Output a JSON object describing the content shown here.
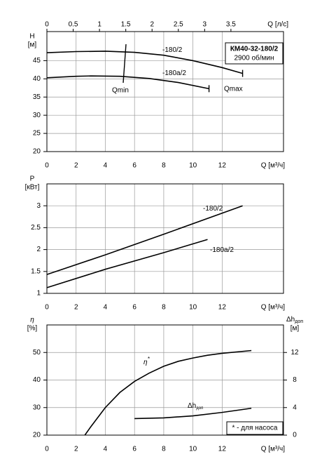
{
  "chart_data": [
    {
      "type": "line",
      "xlabel": "Q [м³/ч]",
      "x2label": "Q [л/с]",
      "ylabel": "H",
      "yunit": "[м]",
      "xlim": [
        0,
        16.2
      ],
      "xticks": [
        0,
        2,
        4,
        6,
        8,
        10,
        12
      ],
      "x2lim": [
        0,
        4.5
      ],
      "x2ticks": [
        0,
        0.5,
        1,
        1.5,
        2,
        2.5,
        3,
        3.5
      ],
      "ylim": [
        20,
        53
      ],
      "yticks": [
        20,
        25,
        30,
        35,
        40,
        45
      ],
      "grid": true,
      "box_title": "КМ40-32-180/2",
      "box_text": "2900 об/мин",
      "annotations": [
        "Qmin",
        "Qmax"
      ],
      "end_marks": true,
      "series": [
        {
          "name": "-180/2",
          "color": "#000000",
          "x": [
            0,
            2,
            4,
            6,
            8,
            10,
            12,
            13.4
          ],
          "values": [
            47.2,
            47.5,
            47.6,
            47.3,
            46.5,
            45.0,
            43.1,
            41.5
          ]
        },
        {
          "name": "-180a/2",
          "color": "#000000",
          "x": [
            0,
            2,
            3,
            5,
            7,
            9,
            11.1
          ],
          "values": [
            40.3,
            40.7,
            40.8,
            40.7,
            40.1,
            39.0,
            37.3
          ]
        }
      ]
    },
    {
      "type": "line",
      "xlabel": "Q [м³/ч]",
      "ylabel": "P",
      "yunit": "[кВт]",
      "xlim": [
        0,
        16.2
      ],
      "xticks": [
        0,
        2,
        4,
        6,
        8,
        10,
        12
      ],
      "ylim": [
        1,
        3.5
      ],
      "yticks": [
        1,
        1.5,
        2,
        2.5,
        3
      ],
      "grid": true,
      "series": [
        {
          "name": "-180/2",
          "color": "#000000",
          "x": [
            0,
            4,
            8,
            13.4
          ],
          "values": [
            1.43,
            1.88,
            2.35,
            3.0
          ]
        },
        {
          "name": "-180a/2",
          "color": "#000000",
          "x": [
            0,
            4,
            8,
            11
          ],
          "values": [
            1.13,
            1.55,
            1.93,
            2.23
          ]
        }
      ]
    },
    {
      "type": "line",
      "xlabel": "Q [м³/ч]",
      "ylabel": "η",
      "yunit": "[%]",
      "y2label": "Δh",
      "y2sub": "доп",
      "y2unit": "[м]",
      "xlim": [
        0,
        16.2
      ],
      "xticks": [
        0,
        2,
        4,
        6,
        8,
        10,
        12
      ],
      "ylim": [
        20,
        60
      ],
      "yticks": [
        20,
        30,
        40,
        50
      ],
      "y2lim": [
        0,
        16
      ],
      "y2ticks": [
        0,
        4,
        8,
        12
      ],
      "grid": true,
      "note": "* - для насоса",
      "series": [
        {
          "name": "η",
          "sup": "*",
          "color": "#000000",
          "x": [
            2.6,
            3,
            4,
            5,
            6,
            7,
            8,
            9,
            10,
            11,
            12,
            14
          ],
          "values": [
            20,
            23,
            30,
            35.5,
            39.5,
            42.5,
            45,
            46.8,
            48,
            49,
            49.7,
            50.7
          ]
        },
        {
          "name": "Δh",
          "sub": "доп",
          "axis": "y2",
          "color": "#000000",
          "x": [
            6,
            8,
            10,
            12,
            14
          ],
          "values": [
            2.4,
            2.5,
            2.8,
            3.3,
            3.9
          ]
        }
      ]
    }
  ]
}
